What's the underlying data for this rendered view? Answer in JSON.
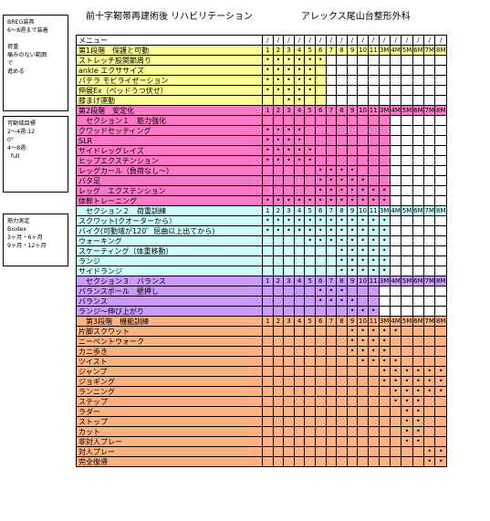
{
  "header": {
    "title": "前十字靭帯再建術後 リハビリテーション",
    "clinic": "アレックス尾山台整形外科"
  },
  "side_notes": [
    {
      "text": "BREG装具\n6～8週まで装着\n\n荷重\n痛みのない範囲\nで\n進める"
    },
    {
      "text": "可動域目標\n2～4週:12\n0°\n4～8週:\n  full"
    },
    {
      "text": "筋力測定\nBiodex\n3ヶ月・6ヶ月\n9ヶ月・12ヶ月"
    }
  ],
  "colors": {
    "yellow": "#FFFF99",
    "pink": "#FF79C9",
    "cyan": "#CCFFFF",
    "purple": "#CC99FF",
    "orange": "#FFB380"
  },
  "week_columns": [
    "1",
    "2",
    "3",
    "4",
    "5",
    "6",
    "7",
    "8",
    "9",
    "10",
    "11",
    "3M",
    "4M",
    "5M",
    "6M",
    "7M",
    "8M"
  ],
  "menu_label": "メニュー",
  "date_mark": "/",
  "rows": [
    {
      "label": "第1段階　保護と可動",
      "type": "num",
      "color": "yellow",
      "fill": 17
    },
    {
      "label": "ストレッチ股関節周り",
      "color": "yellow",
      "fill": 6,
      "dots": [
        1,
        1,
        1,
        1,
        1,
        1
      ]
    },
    {
      "label": "ankle エクササイズ",
      "color": "yellow",
      "fill": 6,
      "dots": [
        1,
        1,
        1,
        1,
        1,
        0
      ]
    },
    {
      "label": "パテラ モビライゼーション",
      "color": "yellow",
      "fill": 6,
      "dots": [
        1,
        1,
        1,
        1,
        1,
        0
      ]
    },
    {
      "label": "伸展Ex（ベッドうつ伏せ）",
      "color": "yellow",
      "fill": 6,
      "dots": [
        1,
        1,
        1,
        1,
        1,
        0
      ]
    },
    {
      "label": "膝まげ運動",
      "color": "yellow",
      "fill": 6,
      "dots": [
        0,
        0,
        1,
        1,
        0,
        0
      ]
    },
    {
      "label": "第2段階　安定化",
      "type": "num",
      "color": "pink",
      "fill": 17
    },
    {
      "label": "　セクション１　筋力強化",
      "color": "pink",
      "fill": 12
    },
    {
      "label": "クワッドセッティング",
      "color": "pink",
      "fill": 12,
      "dots": [
        1,
        1,
        1,
        1,
        0,
        0,
        0,
        0,
        0,
        0,
        0,
        0
      ]
    },
    {
      "label": "SLR",
      "color": "pink",
      "fill": 12,
      "dots": [
        1,
        1,
        1,
        1,
        0,
        0,
        0,
        0,
        0,
        0,
        0,
        0
      ]
    },
    {
      "label": "サイドレッグレイズ",
      "color": "pink",
      "fill": 12,
      "dots": [
        1,
        1,
        1,
        1,
        1,
        0,
        0,
        0,
        0,
        0,
        0,
        0
      ]
    },
    {
      "label": "ヒップエクステンション",
      "color": "pink",
      "fill": 12,
      "dots": [
        1,
        1,
        1,
        1,
        1,
        0,
        0,
        0,
        0,
        0,
        0,
        0
      ]
    },
    {
      "label": "レッグカール（負荷なし～）",
      "color": "pink",
      "fill": 12,
      "dots": [
        0,
        0,
        0,
        0,
        0,
        1,
        1,
        1,
        1,
        0,
        0,
        0
      ]
    },
    {
      "label": "バタ足",
      "color": "pink",
      "fill": 12,
      "dots": [
        0,
        0,
        0,
        0,
        0,
        1,
        1,
        1,
        1,
        1,
        0,
        0
      ]
    },
    {
      "label": "レッグ　エクステンション",
      "color": "pink",
      "fill": 12,
      "dots": [
        0,
        0,
        0,
        0,
        0,
        1,
        1,
        1,
        1,
        1,
        1,
        1
      ]
    },
    {
      "label": "体幹トレーニング",
      "color": "pink",
      "fill": 12,
      "dots": [
        1,
        1,
        1,
        1,
        1,
        1,
        1,
        1,
        1,
        1,
        1,
        1
      ]
    },
    {
      "label": "　セクション２　荷重訓練",
      "type": "num",
      "color": "cyan",
      "fill": 17
    },
    {
      "label": "スクワット(クオーターから）",
      "color": "cyan",
      "fill": 12,
      "dots": [
        1,
        1,
        1,
        1,
        1,
        1,
        1,
        1,
        1,
        1,
        1,
        1
      ]
    },
    {
      "label": "バイク(可動域が120゜屈曲以上出てから)",
      "color": "cyan",
      "fill": 12,
      "dots": [
        1,
        1,
        1,
        1,
        1,
        1,
        1,
        1,
        1,
        1,
        1,
        1
      ]
    },
    {
      "label": "ウォーキング",
      "color": "cyan",
      "fill": 12,
      "dots": [
        0,
        0,
        0,
        0,
        1,
        1,
        1,
        1,
        1,
        1,
        1,
        1
      ]
    },
    {
      "label": "スケーティング（体重移動）",
      "color": "cyan",
      "fill": 12,
      "dots": [
        0,
        0,
        0,
        0,
        0,
        0,
        0,
        1,
        1,
        1,
        1,
        1
      ]
    },
    {
      "label": "ランジ",
      "color": "cyan",
      "fill": 12,
      "dots": [
        0,
        0,
        0,
        0,
        0,
        0,
        0,
        1,
        1,
        1,
        1,
        1
      ]
    },
    {
      "label": "サイドランジ",
      "color": "cyan",
      "fill": 12,
      "dots": [
        0,
        0,
        0,
        0,
        0,
        0,
        0,
        1,
        1,
        1,
        1,
        1
      ]
    },
    {
      "label": "　セクション３　バランス",
      "type": "num",
      "color": "purple",
      "fill": 17
    },
    {
      "label": "バランスボール　壁押し",
      "color": "purple",
      "fill": 11,
      "dots": [
        0,
        0,
        0,
        0,
        0,
        1,
        1,
        1,
        0,
        0,
        0
      ]
    },
    {
      "label": "バランス",
      "color": "purple",
      "fill": 11,
      "dots": [
        0,
        0,
        0,
        0,
        0,
        1,
        1,
        1,
        1,
        0,
        0
      ]
    },
    {
      "label": "ランジ～伸び上がり",
      "color": "purple",
      "fill": 11,
      "dots": [
        0,
        0,
        0,
        0,
        0,
        0,
        0,
        0,
        1,
        1,
        1
      ]
    },
    {
      "label": "　第3段階　機能訓練",
      "type": "num",
      "color": "orange",
      "fill": 17
    },
    {
      "label": "片脚スクワット",
      "color": "orange",
      "fill": 17,
      "dots": [
        0,
        0,
        0,
        0,
        0,
        0,
        0,
        0,
        1,
        1,
        1,
        1,
        1,
        0,
        0,
        0,
        0
      ]
    },
    {
      "label": "ニーベントウォーク",
      "color": "orange",
      "fill": 17,
      "dots": [
        0,
        0,
        0,
        0,
        0,
        0,
        0,
        0,
        1,
        1,
        1,
        1,
        0,
        0,
        0,
        0,
        0
      ]
    },
    {
      "label": "カニ歩き",
      "color": "orange",
      "fill": 17,
      "dots": [
        0,
        0,
        0,
        0,
        0,
        0,
        0,
        0,
        1,
        1,
        1,
        1,
        0,
        0,
        0,
        0,
        0
      ]
    },
    {
      "label": "ツイスト",
      "color": "orange",
      "fill": 17,
      "dots": [
        0,
        0,
        0,
        0,
        0,
        0,
        0,
        0,
        0,
        1,
        1,
        1,
        1,
        0,
        0,
        0,
        0
      ]
    },
    {
      "label": "ジャンプ",
      "color": "orange",
      "fill": 17,
      "dots": [
        0,
        0,
        0,
        0,
        0,
        0,
        0,
        0,
        0,
        0,
        0,
        1,
        1,
        1,
        1,
        1,
        1
      ]
    },
    {
      "label": "ジョギング",
      "color": "orange",
      "fill": 17,
      "dots": [
        0,
        0,
        0,
        0,
        0,
        0,
        0,
        0,
        0,
        0,
        0,
        1,
        1,
        1,
        1,
        1,
        1
      ]
    },
    {
      "label": "ランニング",
      "color": "orange",
      "fill": 17,
      "dots": [
        0,
        0,
        0,
        0,
        0,
        0,
        0,
        0,
        0,
        0,
        0,
        0,
        1,
        1,
        1,
        1,
        1
      ]
    },
    {
      "label": "ステップ",
      "color": "orange",
      "fill": 17,
      "dots": [
        0,
        0,
        0,
        0,
        0,
        0,
        0,
        0,
        0,
        0,
        0,
        0,
        1,
        1,
        1,
        0,
        0
      ]
    },
    {
      "label": "ラダー",
      "color": "orange",
      "fill": 17,
      "dots": [
        0,
        0,
        0,
        0,
        0,
        0,
        0,
        0,
        0,
        0,
        0,
        0,
        0,
        1,
        1,
        0,
        0
      ]
    },
    {
      "label": "ストップ",
      "color": "orange",
      "fill": 17,
      "dots": [
        0,
        0,
        0,
        0,
        0,
        0,
        0,
        0,
        0,
        0,
        0,
        0,
        0,
        1,
        1,
        0,
        0
      ]
    },
    {
      "label": "カット",
      "color": "orange",
      "fill": 17,
      "dots": [
        0,
        0,
        0,
        0,
        0,
        0,
        0,
        0,
        0,
        0,
        0,
        0,
        0,
        1,
        1,
        0,
        0
      ]
    },
    {
      "label": "非対人プレー",
      "color": "orange",
      "fill": 17,
      "dots": [
        0,
        0,
        0,
        0,
        0,
        0,
        0,
        0,
        0,
        0,
        0,
        0,
        0,
        1,
        1,
        0,
        0
      ]
    },
    {
      "label": "対人プレー",
      "color": "orange",
      "fill": 17,
      "dots": [
        0,
        0,
        0,
        0,
        0,
        0,
        0,
        0,
        0,
        0,
        0,
        0,
        0,
        0,
        0,
        1,
        1
      ]
    },
    {
      "label": "完全復帰",
      "color": "orange",
      "fill": 17,
      "dots": [
        0,
        0,
        0,
        0,
        0,
        0,
        0,
        0,
        0,
        0,
        0,
        0,
        0,
        0,
        0,
        1,
        1
      ]
    }
  ]
}
